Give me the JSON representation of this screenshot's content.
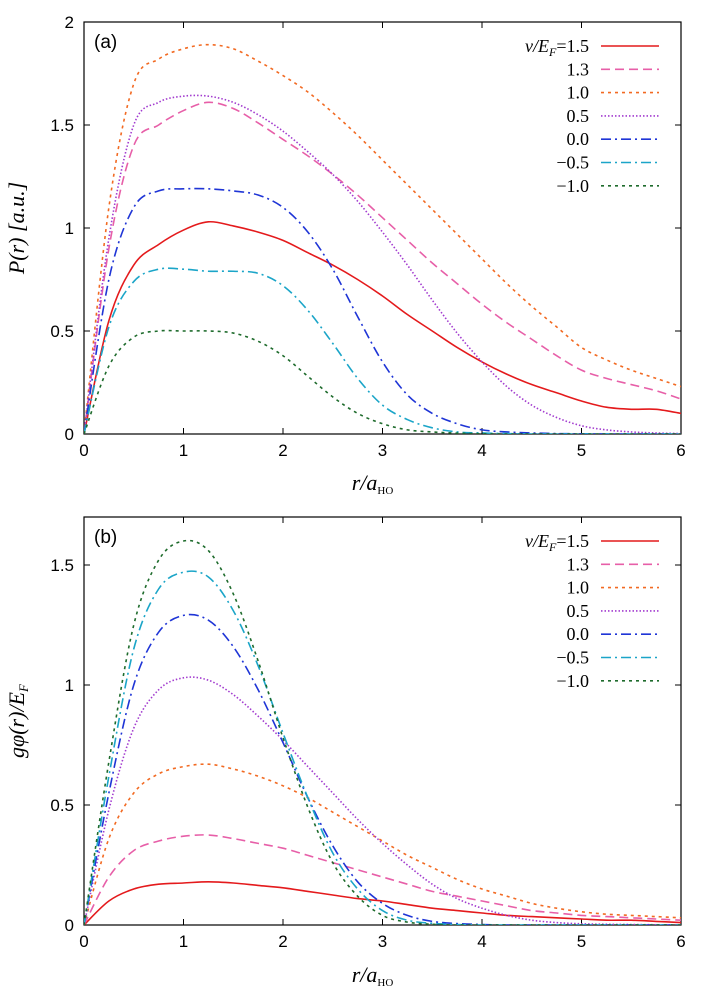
{
  "figure": {
    "series_styles": [
      {
        "name": "1.5",
        "color": "#e41a1c",
        "dash": "solid"
      },
      {
        "name": "1.3",
        "color": "#e75fa8",
        "dash": "dash"
      },
      {
        "name": "1.0",
        "color": "#f26a22",
        "dash": "dot"
      },
      {
        "name": "0.5",
        "color": "#a23bcf",
        "dash": "dense-dot"
      },
      {
        "name": "0.0",
        "color": "#1f35d6",
        "dash": "dashdot"
      },
      {
        "name": "−0.5",
        "color": "#1ba5c8",
        "dash": "dashdot"
      },
      {
        "name": "−1.0",
        "color": "#1e6b2c",
        "dash": "dot"
      }
    ]
  },
  "chart_data": [
    {
      "type": "line",
      "panel_label": "(a)",
      "title": "",
      "xlabel": "r/a_HO",
      "xlabel_main": "r/a",
      "xlabel_sub": "HO",
      "ylabel": "P(r) [a.u.]",
      "ylabel_main": "P(r) [a.u.]",
      "xlim": [
        0,
        6
      ],
      "ylim": [
        0,
        2
      ],
      "x_ticks": [
        "0",
        "1",
        "2",
        "3",
        "4",
        "5",
        "6"
      ],
      "x_tick_values": [
        0,
        1,
        2,
        3,
        4,
        5,
        6
      ],
      "y_ticks": [
        "0",
        "0.5",
        "1",
        "1.5",
        "2"
      ],
      "y_tick_values": [
        0,
        0.5,
        1,
        1.5,
        2
      ],
      "legend_title": "ν/E",
      "legend_title_sub": "F",
      "legend_location": "top-right",
      "x": [
        0,
        0.25,
        0.5,
        0.75,
        1.0,
        1.25,
        1.5,
        1.75,
        2.0,
        2.25,
        2.5,
        2.75,
        3.0,
        3.25,
        3.5,
        3.75,
        4.0,
        4.25,
        4.5,
        4.75,
        5.0,
        5.25,
        5.5,
        5.75,
        6.0
      ],
      "series": [
        {
          "name": "1.5",
          "values": [
            0,
            0.55,
            0.82,
            0.92,
            0.99,
            1.03,
            1.01,
            0.98,
            0.94,
            0.88,
            0.82,
            0.75,
            0.67,
            0.58,
            0.5,
            0.42,
            0.35,
            0.29,
            0.24,
            0.2,
            0.16,
            0.13,
            0.12,
            0.12,
            0.1
          ]
        },
        {
          "name": "1.3",
          "values": [
            0,
            0.9,
            1.4,
            1.5,
            1.57,
            1.61,
            1.58,
            1.51,
            1.43,
            1.35,
            1.26,
            1.16,
            1.05,
            0.94,
            0.83,
            0.73,
            0.63,
            0.54,
            0.46,
            0.38,
            0.31,
            0.27,
            0.24,
            0.21,
            0.17
          ]
        },
        {
          "name": "1.0",
          "values": [
            0,
            1.1,
            1.7,
            1.82,
            1.87,
            1.89,
            1.87,
            1.81,
            1.74,
            1.66,
            1.56,
            1.45,
            1.33,
            1.21,
            1.09,
            0.97,
            0.85,
            0.73,
            0.62,
            0.52,
            0.42,
            0.36,
            0.31,
            0.27,
            0.23
          ]
        },
        {
          "name": "0.5",
          "values": [
            0,
            0.95,
            1.5,
            1.61,
            1.64,
            1.64,
            1.61,
            1.55,
            1.47,
            1.37,
            1.26,
            1.13,
            0.98,
            0.82,
            0.65,
            0.49,
            0.35,
            0.23,
            0.14,
            0.08,
            0.04,
            0.02,
            0.01,
            0.005,
            0.002
          ]
        },
        {
          "name": "0.0",
          "values": [
            0,
            0.75,
            1.1,
            1.18,
            1.19,
            1.19,
            1.18,
            1.16,
            1.1,
            0.98,
            0.8,
            0.57,
            0.35,
            0.19,
            0.1,
            0.05,
            0.02,
            0.01,
            0.005,
            0.002,
            0.001,
            0,
            0,
            0,
            0
          ]
        },
        {
          "name": "−0.5",
          "values": [
            0,
            0.52,
            0.74,
            0.8,
            0.8,
            0.79,
            0.79,
            0.78,
            0.72,
            0.6,
            0.44,
            0.27,
            0.14,
            0.07,
            0.03,
            0.01,
            0.005,
            0.002,
            0,
            0,
            0,
            0,
            0,
            0,
            0
          ]
        },
        {
          "name": "−1.0",
          "values": [
            0,
            0.33,
            0.47,
            0.5,
            0.5,
            0.5,
            0.49,
            0.45,
            0.38,
            0.28,
            0.18,
            0.1,
            0.05,
            0.02,
            0.01,
            0.004,
            0.001,
            0,
            0,
            0,
            0,
            0,
            0,
            0,
            0
          ]
        }
      ]
    },
    {
      "type": "line",
      "panel_label": "(b)",
      "title": "",
      "xlabel": "r/a_HO",
      "xlabel_main": "r/a",
      "xlabel_sub": "HO",
      "ylabel": "gφ(r)/E_F",
      "ylabel_main": "gφ(r)/E",
      "ylabel_sub": "F",
      "xlim": [
        0,
        6
      ],
      "ylim": [
        0,
        1.7
      ],
      "x_ticks": [
        "0",
        "1",
        "2",
        "3",
        "4",
        "5",
        "6"
      ],
      "x_tick_values": [
        0,
        1,
        2,
        3,
        4,
        5,
        6
      ],
      "y_ticks": [
        "0",
        "0.5",
        "1",
        "1.5"
      ],
      "y_tick_values": [
        0,
        0.5,
        1,
        1.5
      ],
      "legend_title": "ν/E",
      "legend_title_sub": "F",
      "legend_location": "top-right",
      "x": [
        0,
        0.25,
        0.5,
        0.75,
        1.0,
        1.25,
        1.5,
        1.75,
        2.0,
        2.25,
        2.5,
        2.75,
        3.0,
        3.25,
        3.5,
        3.75,
        4.0,
        4.25,
        4.5,
        4.75,
        5.0,
        5.25,
        5.5,
        5.75,
        6.0
      ],
      "series": [
        {
          "name": "1.5",
          "values": [
            0,
            0.1,
            0.15,
            0.17,
            0.175,
            0.18,
            0.175,
            0.165,
            0.155,
            0.14,
            0.125,
            0.11,
            0.1,
            0.085,
            0.07,
            0.06,
            0.05,
            0.04,
            0.035,
            0.03,
            0.025,
            0.02,
            0.02,
            0.015,
            0.01
          ]
        },
        {
          "name": "1.3",
          "values": [
            0,
            0.2,
            0.31,
            0.35,
            0.37,
            0.375,
            0.36,
            0.34,
            0.32,
            0.29,
            0.26,
            0.23,
            0.2,
            0.17,
            0.14,
            0.12,
            0.1,
            0.08,
            0.06,
            0.05,
            0.04,
            0.035,
            0.03,
            0.025,
            0.02
          ]
        },
        {
          "name": "1.0",
          "values": [
            0,
            0.36,
            0.55,
            0.63,
            0.66,
            0.67,
            0.65,
            0.62,
            0.58,
            0.53,
            0.47,
            0.41,
            0.35,
            0.29,
            0.24,
            0.19,
            0.15,
            0.12,
            0.09,
            0.07,
            0.055,
            0.045,
            0.04,
            0.035,
            0.03
          ]
        },
        {
          "name": "0.5",
          "values": [
            0,
            0.48,
            0.82,
            0.98,
            1.03,
            1.02,
            0.96,
            0.87,
            0.77,
            0.66,
            0.55,
            0.44,
            0.34,
            0.25,
            0.17,
            0.11,
            0.07,
            0.04,
            0.02,
            0.01,
            0.005,
            0.003,
            0.002,
            0.001,
            0
          ]
        },
        {
          "name": "0.0",
          "values": [
            0,
            0.55,
            1.0,
            1.22,
            1.29,
            1.27,
            1.16,
            0.98,
            0.76,
            0.53,
            0.33,
            0.18,
            0.09,
            0.04,
            0.015,
            0.006,
            0.002,
            0,
            0,
            0,
            0,
            0,
            0,
            0,
            0
          ]
        },
        {
          "name": "−0.5",
          "values": [
            0,
            0.62,
            1.15,
            1.4,
            1.47,
            1.45,
            1.31,
            1.08,
            0.8,
            0.53,
            0.3,
            0.15,
            0.06,
            0.02,
            0.007,
            0.002,
            0,
            0,
            0,
            0,
            0,
            0,
            0,
            0,
            0
          ]
        },
        {
          "name": "−1.0",
          "values": [
            0,
            0.68,
            1.25,
            1.52,
            1.6,
            1.56,
            1.38,
            1.1,
            0.78,
            0.49,
            0.26,
            0.12,
            0.04,
            0.012,
            0.003,
            0,
            0,
            0,
            0,
            0,
            0,
            0,
            0,
            0,
            0
          ]
        }
      ]
    }
  ]
}
